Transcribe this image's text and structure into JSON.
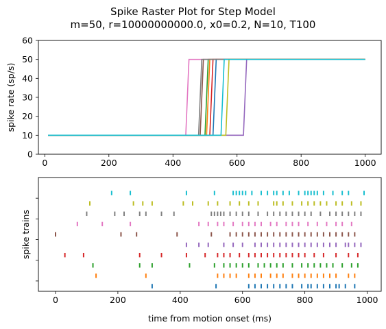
{
  "chart_data": [
    {
      "type": "line",
      "title": "Spike Raster Plot for Step Model",
      "subtitle": "m=50, r=10000000000.0, x0=0.2, N=10, T100",
      "xlabel": "",
      "ylabel": "spike rate (sp/s)",
      "xlim": [
        -20,
        1050
      ],
      "ylim": [
        0,
        60
      ],
      "xticks": [
        0,
        200,
        400,
        600,
        800,
        1000
      ],
      "yticks": [
        0,
        10,
        20,
        30,
        40,
        50,
        60
      ],
      "grid": false,
      "series": [
        {
          "color": "#1f77b4",
          "low": 10,
          "high": 50,
          "x_start": 10,
          "x_end": 1000,
          "step_at": 525
        },
        {
          "color": "#ff7f0e",
          "low": 10,
          "high": 50,
          "x_start": 10,
          "x_end": 1000,
          "step_at": 505
        },
        {
          "color": "#2ca02c",
          "low": 10,
          "high": 50,
          "x_start": 10,
          "x_end": 1000,
          "step_at": 500
        },
        {
          "color": "#d62728",
          "low": 10,
          "high": 50,
          "x_start": 10,
          "x_end": 1000,
          "step_at": 515
        },
        {
          "color": "#9467bd",
          "low": 10,
          "high": 50,
          "x_start": 10,
          "x_end": 1000,
          "step_at": 620
        },
        {
          "color": "#8c564b",
          "low": 10,
          "high": 50,
          "x_start": 10,
          "x_end": 1000,
          "step_at": 485
        },
        {
          "color": "#e377c2",
          "low": 10,
          "high": 50,
          "x_start": 10,
          "x_end": 1000,
          "step_at": 440
        },
        {
          "color": "#7f7f7f",
          "low": 10,
          "high": 50,
          "x_start": 10,
          "x_end": 1000,
          "step_at": 480
        },
        {
          "color": "#bcbd22",
          "low": 10,
          "high": 50,
          "x_start": 10,
          "x_end": 1000,
          "step_at": 565
        },
        {
          "color": "#17becf",
          "low": 10,
          "high": 50,
          "x_start": 10,
          "x_end": 1000,
          "step_at": 550
        }
      ]
    },
    {
      "type": "scatter",
      "title": "",
      "xlabel": "time from motion onset (ms)",
      "ylabel": "spike trains",
      "xlim": [
        -55,
        1045
      ],
      "ylim": [
        -0.5,
        10.5
      ],
      "xticks": [
        0,
        200,
        400,
        600,
        800,
        1000
      ],
      "marker": "|",
      "grid": false,
      "trains": [
        {
          "train": 0,
          "color": "#1f77b4",
          "times": [
            310,
            515,
            620,
            640,
            660,
            680,
            700,
            720,
            740,
            760,
            790,
            810,
            820,
            840,
            860,
            880,
            900,
            910,
            930,
            960
          ]
        },
        {
          "train": 1,
          "color": "#ff7f0e",
          "times": [
            130,
            290,
            520,
            540,
            560,
            580,
            620,
            640,
            660,
            690,
            710,
            730,
            760,
            780,
            800,
            820,
            840,
            860,
            880,
            900,
            940,
            960
          ]
        },
        {
          "train": 2,
          "color": "#2ca02c",
          "times": [
            120,
            270,
            310,
            430,
            510,
            540,
            560,
            580,
            600,
            620,
            650,
            670,
            690,
            710,
            730,
            760,
            790,
            810,
            830,
            850,
            870,
            890,
            920,
            950,
            970
          ]
        },
        {
          "train": 3,
          "color": "#d62728",
          "times": [
            30,
            90,
            270,
            340,
            420,
            480,
            520,
            540,
            560,
            590,
            620,
            640,
            660,
            680,
            700,
            720,
            740,
            760,
            780,
            800,
            830,
            860,
            900,
            940,
            970
          ]
        },
        {
          "train": 4,
          "color": "#9467bd",
          "times": [
            420,
            460,
            490,
            540,
            570,
            600,
            640,
            660,
            680,
            700,
            720,
            740,
            760,
            780,
            800,
            820,
            840,
            860,
            880,
            900,
            930,
            940,
            960,
            980
          ]
        },
        {
          "train": 5,
          "color": "#8c564b",
          "times": [
            0,
            210,
            260,
            390,
            500,
            560,
            580,
            600,
            620,
            640,
            660,
            680,
            700,
            720,
            740,
            760,
            780,
            800,
            820,
            840,
            860,
            880,
            900,
            920,
            940,
            960
          ]
        },
        {
          "train": 6,
          "color": "#e377c2",
          "times": [
            70,
            150,
            240,
            460,
            490,
            520,
            540,
            570,
            600,
            620,
            640,
            660,
            690,
            710,
            740,
            760,
            780,
            810,
            840,
            870,
            900,
            920,
            950
          ]
        },
        {
          "train": 7,
          "color": "#7f7f7f",
          "times": [
            100,
            190,
            220,
            270,
            290,
            340,
            380,
            500,
            510,
            520,
            530,
            540,
            560,
            580,
            600,
            620,
            650,
            680,
            700,
            720,
            740,
            760,
            780,
            800,
            820,
            850,
            880,
            900,
            920,
            940,
            960,
            980
          ]
        },
        {
          "train": 8,
          "color": "#bcbd22",
          "times": [
            110,
            250,
            280,
            310,
            410,
            440,
            490,
            520,
            560,
            590,
            620,
            650,
            700,
            710,
            730,
            760,
            790,
            810,
            830,
            850,
            870,
            900,
            920,
            950,
            980
          ]
        },
        {
          "train": 9,
          "color": "#17becf",
          "times": [
            180,
            240,
            420,
            510,
            570,
            580,
            590,
            600,
            610,
            630,
            660,
            680,
            700,
            710,
            730,
            750,
            780,
            800,
            810,
            820,
            830,
            840,
            860,
            890,
            920,
            940,
            990
          ]
        }
      ]
    }
  ]
}
